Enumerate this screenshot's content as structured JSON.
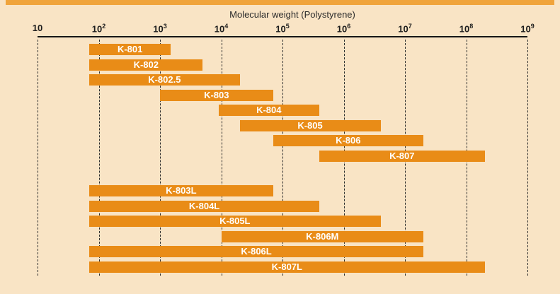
{
  "chart_data": {
    "type": "bar",
    "subtype": "horizontal-log-range",
    "title": "Molecular weight (Polystyrene)",
    "x_scale": "log10",
    "x_min": 10,
    "x_max": 1000000000,
    "grid": "dashed-vertical",
    "x_ticks": [
      {
        "value": 10,
        "label": "10",
        "sup": ""
      },
      {
        "value": 100,
        "label": "10",
        "sup": "2"
      },
      {
        "value": 1000,
        "label": "10",
        "sup": "3"
      },
      {
        "value": 10000,
        "label": "10",
        "sup": "4"
      },
      {
        "value": 100000,
        "label": "10",
        "sup": "5"
      },
      {
        "value": 1000000,
        "label": "10",
        "sup": "6"
      },
      {
        "value": 10000000,
        "label": "10",
        "sup": "7"
      },
      {
        "value": 100000000,
        "label": "10",
        "sup": "8"
      },
      {
        "value": 1000000000,
        "label": "10",
        "sup": "9"
      }
    ],
    "bars": [
      {
        "label": "K-801",
        "from": 70,
        "to": 1500,
        "group": "A"
      },
      {
        "label": "K-802",
        "from": 70,
        "to": 5000,
        "group": "A"
      },
      {
        "label": "K-802.5",
        "from": 70,
        "to": 20000,
        "group": "A"
      },
      {
        "label": "K-803",
        "from": 1000,
        "to": 70000,
        "group": "A"
      },
      {
        "label": "K-804",
        "from": 9000,
        "to": 400000,
        "group": "A"
      },
      {
        "label": "K-805",
        "from": 20000,
        "to": 4000000,
        "group": "A"
      },
      {
        "label": "K-806",
        "from": 70000,
        "to": 20000000,
        "group": "A"
      },
      {
        "label": "K-807",
        "from": 400000,
        "to": 200000000,
        "group": "A"
      },
      {
        "label": "K-803L",
        "from": 70,
        "to": 70000,
        "group": "B"
      },
      {
        "label": "K-804L",
        "from": 70,
        "to": 400000,
        "group": "B"
      },
      {
        "label": "K-805L",
        "from": 70,
        "to": 4000000,
        "group": "B"
      },
      {
        "label": "K-806M",
        "from": 10000,
        "to": 20000000,
        "group": "B"
      },
      {
        "label": "K-806L",
        "from": 70,
        "to": 20000000,
        "group": "B"
      },
      {
        "label": "K-807L",
        "from": 70,
        "to": 200000000,
        "group": "B"
      }
    ]
  },
  "colors": {
    "background": "#F9E4C5",
    "accent_strip": "#F0A43C",
    "bar": "#E98C17",
    "axis": "#161616",
    "grid": "#2E2E2E",
    "tick_text": "#1C1C1C",
    "bar_label": "#FFFFFF"
  }
}
